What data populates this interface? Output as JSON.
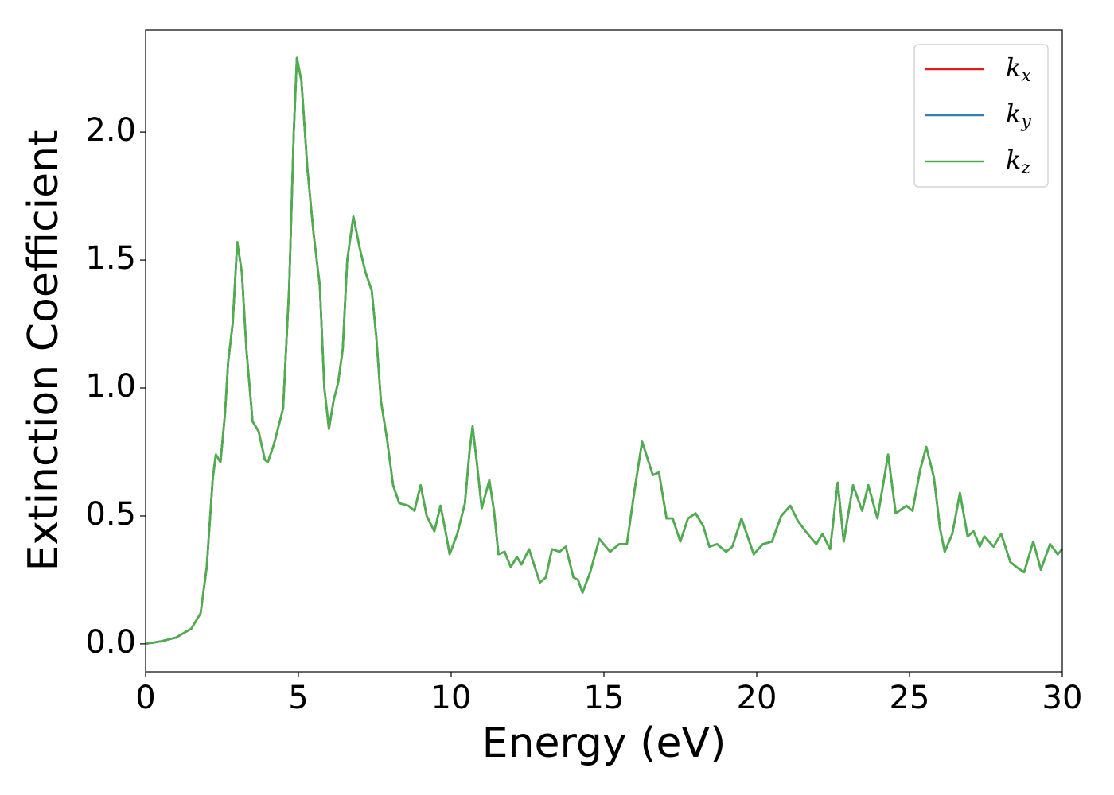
{
  "chart_data": {
    "type": "line",
    "xlabel": "Energy (eV)",
    "ylabel": "Extinction Coefficient",
    "x": [
      0,
      0.5,
      1.0,
      1.5,
      1.8,
      2.0,
      2.2,
      2.3,
      2.45,
      2.6,
      2.7,
      2.85,
      3.0,
      3.15,
      3.3,
      3.5,
      3.7,
      3.9,
      4.0,
      4.2,
      4.5,
      4.7,
      4.85,
      4.95,
      5.1,
      5.3,
      5.5,
      5.7,
      5.85,
      6.0,
      6.15,
      6.3,
      6.45,
      6.6,
      6.8,
      7.0,
      7.2,
      7.4,
      7.55,
      7.7,
      7.9,
      8.1,
      8.3,
      8.6,
      8.8,
      9.0,
      9.2,
      9.45,
      9.65,
      9.8,
      9.95,
      10.2,
      10.45,
      10.6,
      10.7,
      10.85,
      11.0,
      11.25,
      11.4,
      11.55,
      11.75,
      11.95,
      12.15,
      12.3,
      12.55,
      12.9,
      13.1,
      13.3,
      13.55,
      13.75,
      14.0,
      14.15,
      14.3,
      14.55,
      14.85,
      15.2,
      15.5,
      15.75,
      16.0,
      16.25,
      16.6,
      16.8,
      17.05,
      17.25,
      17.5,
      17.75,
      18.0,
      18.25,
      18.45,
      18.7,
      19.0,
      19.2,
      19.5,
      19.7,
      19.9,
      20.2,
      20.5,
      20.8,
      21.1,
      21.35,
      21.6,
      21.95,
      22.15,
      22.4,
      22.65,
      22.85,
      23.15,
      23.45,
      23.65,
      23.95,
      24.3,
      24.55,
      24.9,
      25.1,
      25.35,
      25.55,
      25.8,
      26.0,
      26.15,
      26.4,
      26.65,
      26.9,
      27.1,
      27.3,
      27.45,
      27.75,
      28.0,
      28.3,
      28.5,
      28.75,
      29.05,
      29.3,
      29.6,
      29.85,
      30.0
    ],
    "series": [
      {
        "name": "kx",
        "color": "#e41a1c",
        "values": [
          0,
          0.01,
          0.025,
          0.06,
          0.12,
          0.3,
          0.65,
          0.74,
          0.71,
          0.9,
          1.1,
          1.25,
          1.57,
          1.45,
          1.15,
          0.87,
          0.83,
          0.72,
          0.71,
          0.78,
          0.92,
          1.4,
          2.0,
          2.29,
          2.2,
          1.85,
          1.6,
          1.4,
          1.0,
          0.84,
          0.95,
          1.02,
          1.15,
          1.5,
          1.67,
          1.55,
          1.45,
          1.38,
          1.2,
          0.95,
          0.8,
          0.62,
          0.55,
          0.54,
          0.52,
          0.62,
          0.5,
          0.44,
          0.54,
          0.45,
          0.35,
          0.43,
          0.55,
          0.75,
          0.85,
          0.7,
          0.53,
          0.64,
          0.52,
          0.35,
          0.36,
          0.3,
          0.34,
          0.31,
          0.37,
          0.24,
          0.26,
          0.37,
          0.36,
          0.38,
          0.26,
          0.25,
          0.2,
          0.28,
          0.41,
          0.36,
          0.39,
          0.39,
          0.6,
          0.79,
          0.66,
          0.67,
          0.49,
          0.49,
          0.4,
          0.49,
          0.51,
          0.46,
          0.38,
          0.39,
          0.36,
          0.38,
          0.49,
          0.42,
          0.35,
          0.39,
          0.4,
          0.5,
          0.54,
          0.48,
          0.44,
          0.39,
          0.43,
          0.37,
          0.63,
          0.4,
          0.62,
          0.52,
          0.62,
          0.49,
          0.74,
          0.51,
          0.54,
          0.52,
          0.68,
          0.77,
          0.65,
          0.45,
          0.36,
          0.43,
          0.59,
          0.42,
          0.44,
          0.38,
          0.42,
          0.38,
          0.43,
          0.32,
          0.3,
          0.28,
          0.4,
          0.29,
          0.39,
          0.35,
          0.37
        ]
      },
      {
        "name": "ky",
        "color": "#377eb8",
        "values": [
          0,
          0.01,
          0.025,
          0.06,
          0.12,
          0.3,
          0.65,
          0.74,
          0.71,
          0.9,
          1.1,
          1.25,
          1.57,
          1.45,
          1.15,
          0.87,
          0.83,
          0.72,
          0.71,
          0.78,
          0.92,
          1.4,
          2.0,
          2.29,
          2.2,
          1.85,
          1.6,
          1.4,
          1.0,
          0.84,
          0.95,
          1.02,
          1.15,
          1.5,
          1.67,
          1.55,
          1.45,
          1.38,
          1.2,
          0.95,
          0.8,
          0.62,
          0.55,
          0.54,
          0.52,
          0.62,
          0.5,
          0.44,
          0.54,
          0.45,
          0.35,
          0.43,
          0.55,
          0.75,
          0.85,
          0.7,
          0.53,
          0.64,
          0.52,
          0.35,
          0.36,
          0.3,
          0.34,
          0.31,
          0.37,
          0.24,
          0.26,
          0.37,
          0.36,
          0.38,
          0.26,
          0.25,
          0.2,
          0.28,
          0.41,
          0.36,
          0.39,
          0.39,
          0.6,
          0.79,
          0.66,
          0.67,
          0.49,
          0.49,
          0.4,
          0.49,
          0.51,
          0.46,
          0.38,
          0.39,
          0.36,
          0.38,
          0.49,
          0.42,
          0.35,
          0.39,
          0.4,
          0.5,
          0.54,
          0.48,
          0.44,
          0.39,
          0.43,
          0.37,
          0.63,
          0.4,
          0.62,
          0.52,
          0.62,
          0.49,
          0.74,
          0.51,
          0.54,
          0.52,
          0.68,
          0.77,
          0.65,
          0.45,
          0.36,
          0.43,
          0.59,
          0.42,
          0.44,
          0.38,
          0.42,
          0.38,
          0.43,
          0.32,
          0.3,
          0.28,
          0.4,
          0.29,
          0.39,
          0.35,
          0.37
        ]
      },
      {
        "name": "kz",
        "color": "#4daf4a",
        "values": [
          0,
          0.01,
          0.025,
          0.06,
          0.12,
          0.3,
          0.65,
          0.74,
          0.71,
          0.9,
          1.1,
          1.25,
          1.57,
          1.45,
          1.15,
          0.87,
          0.83,
          0.72,
          0.71,
          0.78,
          0.92,
          1.4,
          2.0,
          2.29,
          2.2,
          1.85,
          1.6,
          1.4,
          1.0,
          0.84,
          0.95,
          1.02,
          1.15,
          1.5,
          1.67,
          1.55,
          1.45,
          1.38,
          1.2,
          0.95,
          0.8,
          0.62,
          0.55,
          0.54,
          0.52,
          0.62,
          0.5,
          0.44,
          0.54,
          0.45,
          0.35,
          0.43,
          0.55,
          0.75,
          0.85,
          0.7,
          0.53,
          0.64,
          0.52,
          0.35,
          0.36,
          0.3,
          0.34,
          0.31,
          0.37,
          0.24,
          0.26,
          0.37,
          0.36,
          0.38,
          0.26,
          0.25,
          0.2,
          0.28,
          0.41,
          0.36,
          0.39,
          0.39,
          0.6,
          0.79,
          0.66,
          0.67,
          0.49,
          0.49,
          0.4,
          0.49,
          0.51,
          0.46,
          0.38,
          0.39,
          0.36,
          0.38,
          0.49,
          0.42,
          0.35,
          0.39,
          0.4,
          0.5,
          0.54,
          0.48,
          0.44,
          0.39,
          0.43,
          0.37,
          0.63,
          0.4,
          0.62,
          0.52,
          0.62,
          0.49,
          0.74,
          0.51,
          0.54,
          0.52,
          0.68,
          0.77,
          0.65,
          0.45,
          0.36,
          0.43,
          0.59,
          0.42,
          0.44,
          0.38,
          0.42,
          0.38,
          0.43,
          0.32,
          0.3,
          0.28,
          0.4,
          0.29,
          0.39,
          0.35,
          0.37
        ]
      }
    ],
    "xlim": [
      0,
      30
    ],
    "xticks": [
      0,
      5,
      10,
      15,
      20,
      25,
      30
    ],
    "ylim": [
      -0.109,
      2.398
    ],
    "yticks": [
      {
        "value": 0,
        "label": "0.0"
      },
      0.5,
      {
        "value": 1,
        "label": "1.0"
      },
      1.5,
      {
        "value": 2,
        "label": "2.0"
      }
    ],
    "grid": false,
    "legend": "upper right"
  }
}
